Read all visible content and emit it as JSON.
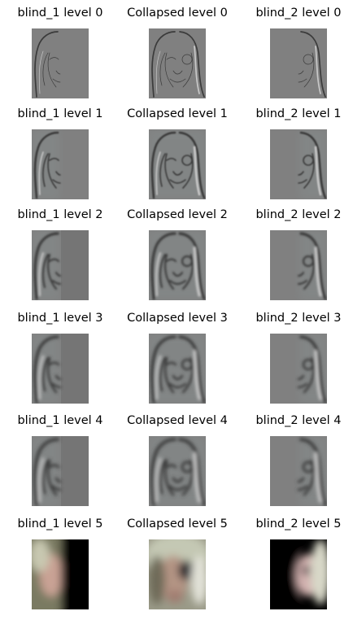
{
  "figure": {
    "columns": [
      "blind_1",
      "Collapsed",
      "blind_2"
    ],
    "panels": [
      {
        "title": "blind_1 level 0",
        "kind": "blind1",
        "level": 0
      },
      {
        "title": "Collapsed level 0",
        "kind": "collapsed",
        "level": 0
      },
      {
        "title": "blind_2 level 0",
        "kind": "blind2",
        "level": 0
      },
      {
        "title": "blind_1 level 1",
        "kind": "blind1",
        "level": 1
      },
      {
        "title": "Collapsed level 1",
        "kind": "collapsed",
        "level": 1
      },
      {
        "title": "blind_2 level 1",
        "kind": "blind2",
        "level": 1
      },
      {
        "title": "blind_1 level 2",
        "kind": "blind1",
        "level": 2
      },
      {
        "title": "Collapsed level 2",
        "kind": "collapsed",
        "level": 2
      },
      {
        "title": "blind_2 level 2",
        "kind": "blind2",
        "level": 2
      },
      {
        "title": "blind_1 level 3",
        "kind": "blind1",
        "level": 3
      },
      {
        "title": "Collapsed level 3",
        "kind": "collapsed",
        "level": 3
      },
      {
        "title": "blind_2 level 3",
        "kind": "blind2",
        "level": 3
      },
      {
        "title": "blind_1 level 4",
        "kind": "blind1",
        "level": 4
      },
      {
        "title": "Collapsed level 4",
        "kind": "collapsed",
        "level": 4
      },
      {
        "title": "blind_2 level 4",
        "kind": "blind2",
        "level": 4
      },
      {
        "title": "blind_1 level 5",
        "kind": "blind1",
        "level": 5
      },
      {
        "title": "Collapsed level 5",
        "kind": "collapsed",
        "level": 5
      },
      {
        "title": "blind_2 level 5",
        "kind": "blind2",
        "level": 5
      }
    ]
  },
  "colors": {
    "laplacian_gray": "#808080",
    "laplacian_dark_edge": "#3a3a3a",
    "laplacian_light_edge": "#c8c8c8",
    "base_black": "#000000",
    "skin": "#c9a294",
    "hair_light": "#d8d8c8"
  }
}
